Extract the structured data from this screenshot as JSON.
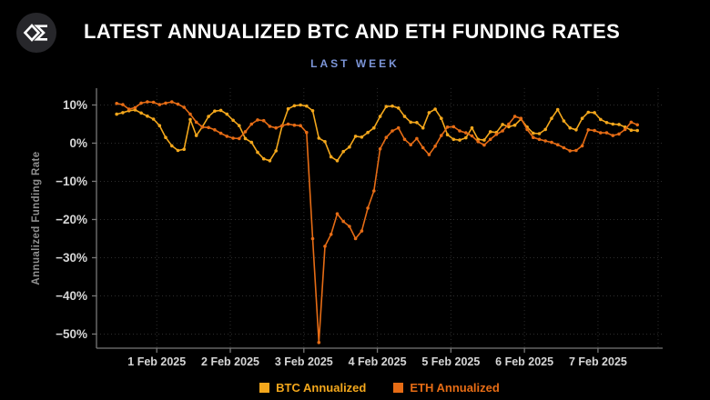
{
  "header": {
    "title": "LATEST ANNUALIZED BTC AND ETH FUNDING RATES",
    "subtitle": "LAST WEEK"
  },
  "colors": {
    "background": "#000000",
    "title": "#ffffff",
    "subtitle": "#7c95d8",
    "tick_labels": "#d6d6d6",
    "axis_label": "#8f8f8f",
    "spine": "#787878",
    "gridline": "#2e2e2e",
    "logo_circle": "#27272b",
    "logo_glyph": "#ffffff"
  },
  "chart_data": {
    "type": "line",
    "title": "LATEST ANNUALIZED BTC AND ETH FUNDING RATES",
    "subtitle": "LAST WEEK",
    "xlabel": "",
    "ylabel": "Annualized Funding Rate",
    "grid": "dotted",
    "legend_position": "bottom",
    "ylim": [
      -53.7,
      14.4
    ],
    "xlim_days": [
      -0.82,
      6.88
    ],
    "y_tick_values": [
      10,
      0,
      -10,
      -20,
      -30,
      -40,
      -50
    ],
    "y_tick_labels": [
      "10%",
      "0%",
      "−10%",
      "−20%",
      "−30%",
      "−40%",
      "−50%"
    ],
    "x_tick_days": [
      0,
      1,
      2,
      3,
      4,
      5,
      6
    ],
    "x_tick_labels": [
      "1 Feb 2025",
      "2 Feb 2025",
      "3 Feb 2025",
      "4 Feb 2025",
      "5 Feb 2025",
      "6 Feb 2025",
      "7 Feb 2025"
    ],
    "x_start_day": -0.545,
    "x_step_day": 0.0833,
    "units": "percent annualized, sampled every 2 hours",
    "series": [
      {
        "name": "BTC Annualized",
        "color": "#f3a71c",
        "values": [
          7.6,
          8.0,
          8.5,
          8.7,
          7.9,
          7.1,
          6.3,
          4.6,
          1.5,
          -0.7,
          -1.9,
          -1.6,
          6.2,
          2.0,
          4.3,
          7.0,
          8.4,
          8.6,
          7.6,
          6.0,
          4.6,
          1.2,
          0.2,
          -2.4,
          -4.1,
          -4.6,
          -2.0,
          4.5,
          9.0,
          9.8,
          10.0,
          9.7,
          8.5,
          1.3,
          0.4,
          -3.6,
          -4.6,
          -2.2,
          -1.0,
          1.8,
          1.6,
          2.8,
          4.0,
          7.0,
          9.6,
          9.7,
          9.2,
          7.0,
          5.5,
          5.4,
          4.0,
          8.0,
          8.9,
          6.5,
          2.2,
          1.0,
          0.8,
          1.4,
          4.0,
          1.0,
          0.8,
          3.0,
          2.8,
          4.9,
          4.3,
          4.7,
          6.3,
          4.2,
          2.6,
          2.5,
          3.6,
          6.5,
          8.8,
          5.8,
          4.0,
          3.5,
          6.5,
          8.1,
          8.0,
          6.2,
          5.4,
          5.0,
          4.9,
          4.2,
          3.4,
          3.3
        ]
      },
      {
        "name": "ETH Annualized",
        "color": "#e66c15",
        "values": [
          10.4,
          10.1,
          8.9,
          9.3,
          10.5,
          10.8,
          10.7,
          10.1,
          10.5,
          10.8,
          10.2,
          9.4,
          7.6,
          5.5,
          4.2,
          4.1,
          3.5,
          2.6,
          1.8,
          1.3,
          1.2,
          3.0,
          5.0,
          6.1,
          5.9,
          4.4,
          4.0,
          4.6,
          5.0,
          4.7,
          4.6,
          2.8,
          -25.0,
          -52.2,
          -27.0,
          -23.9,
          -18.5,
          -20.5,
          -21.8,
          -25.0,
          -23.0,
          -17.0,
          -12.5,
          -1.5,
          1.5,
          3.2,
          4.0,
          1.0,
          -0.4,
          1.2,
          -1.2,
          -3.0,
          -0.8,
          2.0,
          4.2,
          4.3,
          3.2,
          2.7,
          1.9,
          0.4,
          -0.5,
          1.0,
          2.3,
          3.2,
          5.0,
          7.0,
          6.5,
          3.6,
          1.5,
          1.0,
          0.6,
          0.2,
          -0.4,
          -1.2,
          -2.0,
          -1.9,
          -0.7,
          3.5,
          3.3,
          2.7,
          2.7,
          2.0,
          2.4,
          3.6,
          5.5,
          4.8
        ]
      }
    ]
  }
}
